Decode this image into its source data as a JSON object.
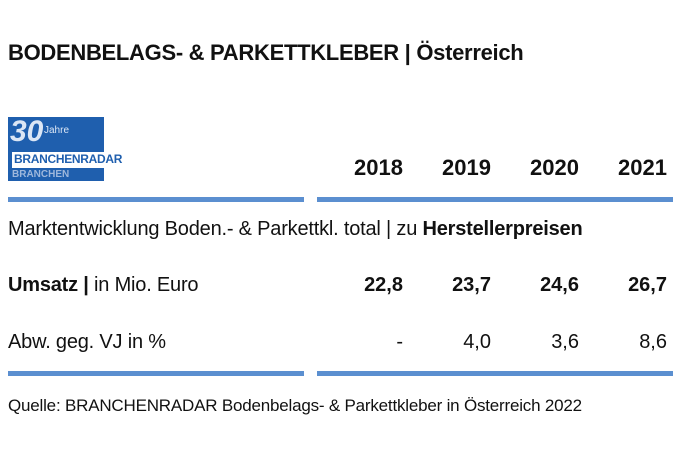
{
  "title": "BODENBELAGS- & PARKETTKLEBER | Österreich",
  "logo": {
    "number": "30",
    "small": "Jahre",
    "brand": "BRANCHENRADAR",
    "shadow": "BRANCHEN"
  },
  "colors": {
    "accent_bar": "#5b8fd0",
    "logo_bg": "#1f5fae"
  },
  "chart_data": {
    "type": "table",
    "columns": [
      "2018",
      "2019",
      "2020",
      "2021"
    ],
    "section": {
      "prefix": "Marktentwicklung Boden.- & Parkettkl. total | zu ",
      "emphasis": "Herstellerpreisen"
    },
    "rows": [
      {
        "label_bold": "Umsatz |",
        "label_rest": " in Mio. Euro",
        "values": [
          "22,8",
          "23,7",
          "24,6",
          "26,7"
        ]
      },
      {
        "label_bold": "",
        "label_rest": "Abw. geg. VJ in %",
        "values": [
          "-",
          "4,0",
          "3,6",
          "8,6"
        ]
      }
    ]
  },
  "source": "Quelle: BRANCHENRADAR Bodenbelags- & Parkettkleber in Österreich 2022"
}
